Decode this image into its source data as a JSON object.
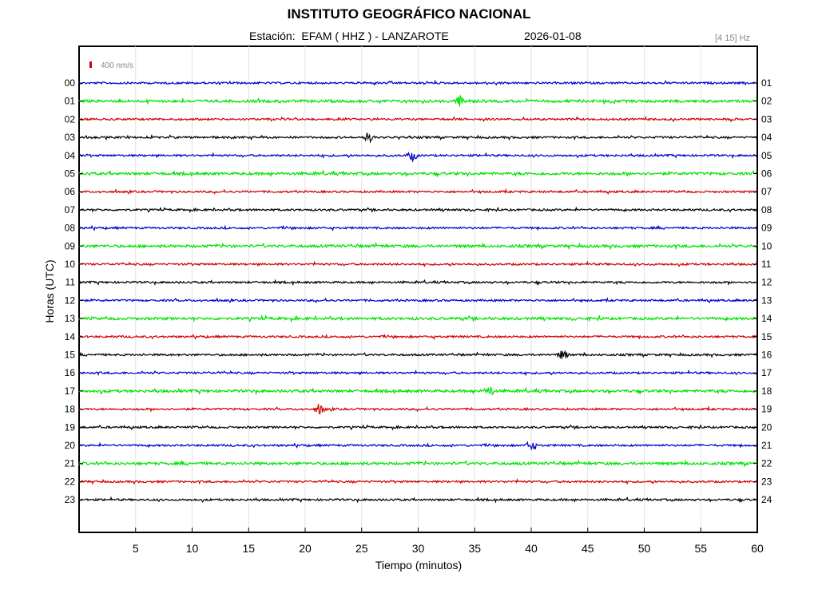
{
  "header": {
    "title": "INSTITUTO GEOGRÁFICO NACIONAL",
    "station": "Estación:  EFAM ( HHZ ) - LANZAROTE",
    "date": "2026-01-08",
    "filter": "[4 15] Hz"
  },
  "chart_data": {
    "type": "line",
    "title": "INSTITUTO GEOGRÁFICO NACIONAL",
    "xlabel": "Tiempo (minutos)",
    "ylabel": "Horas (UTC)",
    "xlim": [
      0,
      60
    ],
    "x_ticks": [
      5,
      10,
      15,
      20,
      25,
      30,
      35,
      40,
      45,
      50,
      55,
      60
    ],
    "x_tick_labels": [
      "5",
      "10",
      "15",
      "20",
      "25",
      "30",
      "35",
      "40",
      "45",
      "50",
      "55",
      "60"
    ],
    "y_left_labels": [
      "00",
      "01",
      "02",
      "03",
      "04",
      "05",
      "06",
      "07",
      "08",
      "09",
      "10",
      "11",
      "12",
      "13",
      "14",
      "15",
      "16",
      "17",
      "18",
      "19",
      "20",
      "21",
      "22",
      "23"
    ],
    "y_right_labels": [
      "01",
      "02",
      "03",
      "04",
      "05",
      "06",
      "07",
      "08",
      "09",
      "10",
      "11",
      "12",
      "13",
      "14",
      "15",
      "16",
      "17",
      "18",
      "19",
      "20",
      "21",
      "22",
      "23",
      "24"
    ],
    "scale_bar": "400 nm/s",
    "grid": "vertical",
    "trace_colors": [
      "#0000c8",
      "#00e000",
      "#d00000",
      "#000000"
    ],
    "events": [
      {
        "hour": "01",
        "minute": 33.7
      },
      {
        "hour": "03",
        "minute": 25.6
      },
      {
        "hour": "04",
        "minute": 29.5
      },
      {
        "hour": "15",
        "minute": 42.8
      },
      {
        "hour": "17",
        "minute": 36.3
      },
      {
        "hour": "18",
        "minute": 21.3
      },
      {
        "hour": "20",
        "minute": 40.0
      }
    ]
  }
}
